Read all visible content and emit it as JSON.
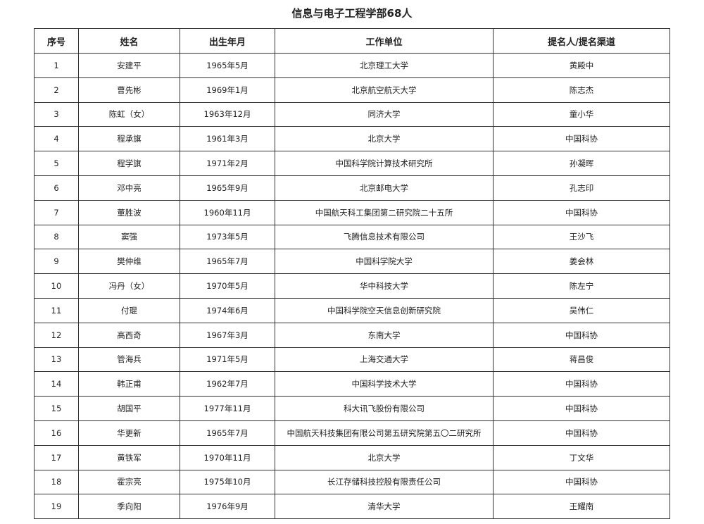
{
  "title": "信息与电子工程学部68人",
  "columns": [
    "序号",
    "姓名",
    "出生年月",
    "工作单位",
    "提名人/提名渠道"
  ],
  "rows": [
    [
      "1",
      "安建平",
      "1965年5月",
      "北京理工大学",
      "黄殿中"
    ],
    [
      "2",
      "曹先彬",
      "1969年1月",
      "北京航空航天大学",
      "陈志杰"
    ],
    [
      "3",
      "陈虹（女）",
      "1963年12月",
      "同济大学",
      "童小华"
    ],
    [
      "4",
      "程承旗",
      "1961年3月",
      "北京大学",
      "中国科协"
    ],
    [
      "5",
      "程学旗",
      "1971年2月",
      "中国科学院计算技术研究所",
      "孙凝晖"
    ],
    [
      "6",
      "邓中亮",
      "1965年9月",
      "北京邮电大学",
      "孔志印"
    ],
    [
      "7",
      "董胜波",
      "1960年11月",
      "中国航天科工集团第二研究院二十五所",
      "中国科协"
    ],
    [
      "8",
      "窦强",
      "1973年5月",
      "飞腾信息技术有限公司",
      "王沙飞"
    ],
    [
      "9",
      "樊仲维",
      "1965年7月",
      "中国科学院大学",
      "姜会林"
    ],
    [
      "10",
      "冯丹（女）",
      "1970年5月",
      "华中科技大学",
      "陈左宁"
    ],
    [
      "11",
      "付琨",
      "1974年6月",
      "中国科学院空天信息创新研究院",
      "吴伟仁"
    ],
    [
      "12",
      "高西奇",
      "1967年3月",
      "东南大学",
      "中国科协"
    ],
    [
      "13",
      "管海兵",
      "1971年5月",
      "上海交通大学",
      "蒋昌俊"
    ],
    [
      "14",
      "韩正甫",
      "1962年7月",
      "中国科学技术大学",
      "中国科协"
    ],
    [
      "15",
      "胡国平",
      "1977年11月",
      "科大讯飞股份有限公司",
      "中国科协"
    ],
    [
      "16",
      "华更新",
      "1965年7月",
      "中国航天科技集团有限公司第五研究院第五〇二研究所",
      "中国科协"
    ],
    [
      "17",
      "黄铁军",
      "1970年11月",
      "北京大学",
      "丁文华"
    ],
    [
      "18",
      "霍宗亮",
      "1975年10月",
      "长江存储科技控股有限责任公司",
      "中国科协"
    ],
    [
      "19",
      "季向阳",
      "1976年9月",
      "清华大学",
      "王耀南"
    ]
  ]
}
